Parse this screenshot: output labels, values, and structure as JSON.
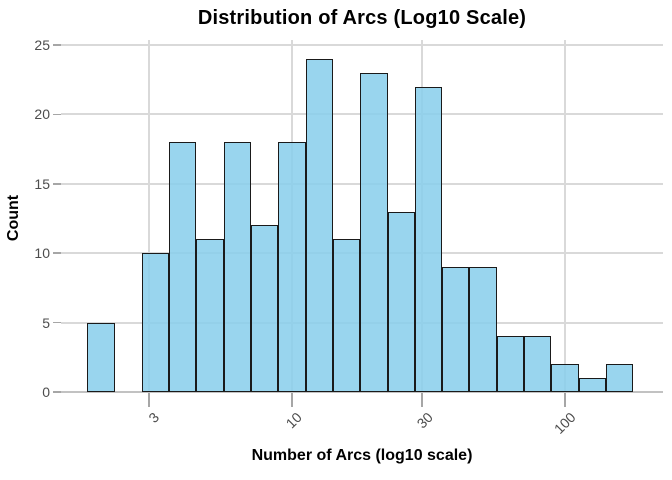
{
  "chart_data": {
    "type": "bar",
    "subtype": "histogram",
    "title": "Distribution of Arcs (Log10 Scale)",
    "xlabel": "Number of Arcs (log10 scale)",
    "ylabel": "Count",
    "x_scale": "log10",
    "x_ticks": [
      {
        "label": "3",
        "log10": 0.4771
      },
      {
        "label": "10",
        "log10": 1.0
      },
      {
        "label": "30",
        "log10": 1.4771
      },
      {
        "label": "100",
        "log10": 2.0
      }
    ],
    "y_ticks": [
      "0",
      "5",
      "10",
      "15",
      "20",
      "25"
    ],
    "ylim": [
      0,
      25
    ],
    "bins": {
      "log10_start": 0.25,
      "log10_width": 0.1,
      "n_bins": 20
    },
    "counts": [
      5,
      0,
      10,
      18,
      11,
      18,
      12,
      18,
      24,
      11,
      23,
      13,
      22,
      9,
      9,
      4,
      4,
      2,
      1,
      2
    ],
    "total_count": 216,
    "legend": "none",
    "grid": "major-only",
    "colors": {
      "bar_fill": "#87CEEB",
      "bar_fill_alpha": 0.85,
      "bar_border": "#1A1A1A",
      "gridline": "#D9D9D9",
      "axis_zero_line": "#C2C2C2",
      "tick_mark": "#A6A6A6",
      "tick_text": "#4D4D4D",
      "title_text": "#000000"
    }
  }
}
